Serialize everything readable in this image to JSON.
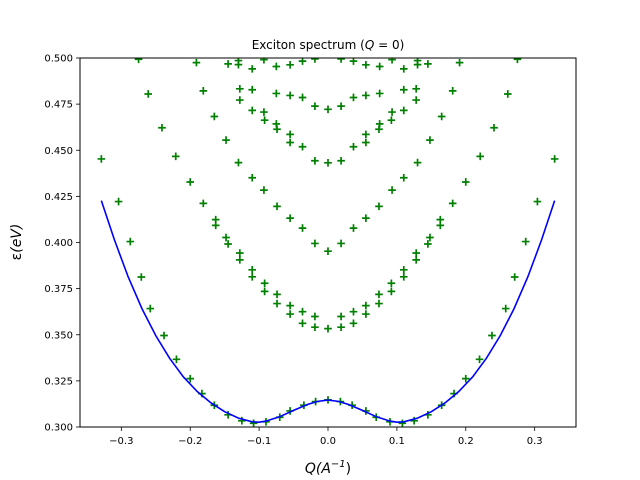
{
  "chart_data": {
    "type": "scatter",
    "title": "Exciton spectrum (Q = 0)",
    "title_parts": {
      "prefix": "Exciton spectrum (",
      "var": "Q",
      "suffix": " = 0)"
    },
    "xlabel": "Q(A^-1)",
    "xlabel_parts": {
      "base": "Q(A",
      "sup": "−1",
      "end": ")"
    },
    "ylabel": "ε(eV)",
    "ylabel_parts": {
      "symbol": "ε",
      "rest": "(eV)"
    },
    "xlim": [
      -0.36,
      0.36
    ],
    "ylim": [
      0.3,
      0.5
    ],
    "xticks": [
      -0.3,
      -0.2,
      -0.1,
      0.0,
      0.1,
      0.2,
      0.3
    ],
    "xtick_labels": [
      "−0.3",
      "−0.2",
      "−0.1",
      "0.0",
      "0.1",
      "0.2",
      "0.3"
    ],
    "yticks": [
      0.3,
      0.325,
      0.35,
      0.375,
      0.4,
      0.425,
      0.45,
      0.475,
      0.5
    ],
    "ytick_labels": [
      "0.300",
      "0.325",
      "0.350",
      "0.375",
      "0.400",
      "0.425",
      "0.450",
      "0.475",
      "0.500"
    ],
    "grid": false,
    "legend": "none",
    "series": [
      {
        "marker": "plus",
        "color": "#008000",
        "values": [
          [
            -0.329,
            0.4453
          ],
          [
            0.329,
            0.4453
          ],
          [
            -0.304,
            0.4222
          ],
          [
            0.304,
            0.4222
          ],
          [
            -0.287,
            0.4005
          ],
          [
            0.287,
            0.4005
          ],
          [
            -0.271,
            0.3813
          ],
          [
            0.271,
            0.3813
          ],
          [
            -0.258,
            0.3642
          ],
          [
            0.258,
            0.3642
          ],
          [
            -0.238,
            0.3496
          ],
          [
            0.238,
            0.3496
          ],
          [
            -0.22,
            0.3367
          ],
          [
            0.22,
            0.3367
          ],
          [
            -0.2,
            0.3262
          ],
          [
            0.2,
            0.3262
          ],
          [
            -0.183,
            0.3181
          ],
          [
            0.183,
            0.3181
          ],
          [
            -0.165,
            0.3118
          ],
          [
            0.165,
            0.3118
          ],
          [
            -0.145,
            0.3066
          ],
          [
            0.145,
            0.3066
          ],
          [
            -0.125,
            0.3034
          ],
          [
            0.125,
            0.3034
          ],
          [
            -0.108,
            0.302
          ],
          [
            0.108,
            0.302
          ],
          [
            -0.09,
            0.3028
          ],
          [
            0.09,
            0.3028
          ],
          [
            -0.07,
            0.3053
          ],
          [
            0.07,
            0.3053
          ],
          [
            -0.055,
            0.3087
          ],
          [
            0.055,
            0.3087
          ],
          [
            -0.035,
            0.3118
          ],
          [
            0.035,
            0.3118
          ],
          [
            -0.018,
            0.3138
          ],
          [
            0.018,
            0.3138
          ],
          [
            0.0,
            0.3147
          ],
          [
            -0.275,
            0.4993
          ],
          [
            0.275,
            0.4993
          ],
          [
            -0.261,
            0.4805
          ],
          [
            0.261,
            0.4805
          ],
          [
            -0.241,
            0.4622
          ],
          [
            0.241,
            0.4622
          ],
          [
            -0.221,
            0.4467
          ],
          [
            0.221,
            0.4467
          ],
          [
            -0.2,
            0.4328
          ],
          [
            0.2,
            0.4328
          ],
          [
            -0.181,
            0.4212
          ],
          [
            0.181,
            0.4212
          ],
          [
            -0.163,
            0.4093
          ],
          [
            0.163,
            0.4093
          ],
          [
            -0.145,
            0.3992
          ],
          [
            0.145,
            0.3992
          ],
          [
            -0.128,
            0.3906
          ],
          [
            0.128,
            0.3906
          ],
          [
            -0.11,
            0.3814
          ],
          [
            0.11,
            0.3814
          ],
          [
            -0.092,
            0.3735
          ],
          [
            0.092,
            0.3735
          ],
          [
            -0.074,
            0.3669
          ],
          [
            0.074,
            0.3669
          ],
          [
            -0.055,
            0.3612
          ],
          [
            0.055,
            0.3612
          ],
          [
            -0.037,
            0.3562
          ],
          [
            0.037,
            0.3562
          ],
          [
            -0.019,
            0.3541
          ],
          [
            0.019,
            0.3541
          ],
          [
            0.0,
            0.3533
          ],
          [
            -0.163,
            0.4124
          ],
          [
            0.163,
            0.4124
          ],
          [
            -0.148,
            0.4027
          ],
          [
            0.148,
            0.4027
          ],
          [
            -0.128,
            0.3943
          ],
          [
            0.128,
            0.3943
          ],
          [
            -0.11,
            0.3852
          ],
          [
            0.11,
            0.3852
          ],
          [
            -0.092,
            0.3779
          ],
          [
            0.092,
            0.3779
          ],
          [
            -0.074,
            0.3719
          ],
          [
            0.074,
            0.3719
          ],
          [
            -0.055,
            0.3658
          ],
          [
            0.055,
            0.3658
          ],
          [
            -0.037,
            0.3625
          ],
          [
            0.037,
            0.3625
          ],
          [
            -0.019,
            0.3599
          ],
          [
            0.019,
            0.3599
          ],
          [
            -0.191,
            0.4975
          ],
          [
            0.191,
            0.4975
          ],
          [
            -0.181,
            0.4822
          ],
          [
            0.181,
            0.4822
          ],
          [
            -0.165,
            0.4683
          ],
          [
            0.165,
            0.4683
          ],
          [
            -0.148,
            0.4555
          ],
          [
            0.148,
            0.4555
          ],
          [
            -0.13,
            0.4433
          ],
          [
            0.13,
            0.4433
          ],
          [
            -0.11,
            0.4351
          ],
          [
            0.11,
            0.4351
          ],
          [
            -0.093,
            0.4284
          ],
          [
            0.093,
            0.4284
          ],
          [
            -0.074,
            0.4196
          ],
          [
            0.074,
            0.4196
          ],
          [
            -0.055,
            0.4132
          ],
          [
            0.055,
            0.4132
          ],
          [
            -0.037,
            0.4078
          ],
          [
            0.037,
            0.4078
          ],
          [
            -0.019,
            0.3995
          ],
          [
            0.019,
            0.3995
          ],
          [
            0.0,
            0.3953
          ],
          [
            -0.13,
            0.4964
          ],
          [
            0.13,
            0.4964
          ],
          [
            -0.11,
            0.4828
          ],
          [
            0.11,
            0.4828
          ],
          [
            -0.093,
            0.4707
          ],
          [
            0.093,
            0.4707
          ],
          [
            -0.075,
            0.4643
          ],
          [
            0.075,
            0.4643
          ],
          [
            -0.055,
            0.4586
          ],
          [
            0.055,
            0.4586
          ],
          [
            -0.037,
            0.4519
          ],
          [
            0.037,
            0.4519
          ],
          [
            -0.019,
            0.4443
          ],
          [
            0.019,
            0.4443
          ],
          [
            0.0,
            0.4432
          ],
          [
            -0.128,
            0.4772
          ],
          [
            0.128,
            0.4772
          ],
          [
            -0.11,
            0.4716
          ],
          [
            0.11,
            0.4716
          ],
          [
            -0.092,
            0.4663
          ],
          [
            0.092,
            0.4663
          ],
          [
            -0.074,
            0.4614
          ],
          [
            0.074,
            0.4614
          ],
          [
            -0.055,
            0.4542
          ],
          [
            0.055,
            0.4542
          ],
          [
            -0.128,
            0.4833
          ],
          [
            0.128,
            0.4833
          ],
          [
            -0.093,
            0.4991
          ],
          [
            0.093,
            0.4991
          ],
          [
            -0.075,
            0.4808
          ],
          [
            0.075,
            0.4808
          ],
          [
            -0.055,
            0.4797
          ],
          [
            0.055,
            0.4797
          ],
          [
            -0.037,
            0.4786
          ],
          [
            0.037,
            0.4786
          ],
          [
            -0.019,
            0.4739
          ],
          [
            0.019,
            0.4739
          ],
          [
            0.0,
            0.4722
          ],
          [
            -0.11,
            0.4941
          ],
          [
            0.11,
            0.4941
          ],
          [
            -0.075,
            0.4954
          ],
          [
            0.075,
            0.4954
          ],
          [
            -0.055,
            0.4963
          ],
          [
            0.055,
            0.4963
          ],
          [
            -0.037,
            0.4983
          ],
          [
            0.037,
            0.4983
          ],
          [
            -0.019,
            0.4995
          ],
          [
            0.019,
            0.4995
          ],
          [
            -0.145,
            0.4968
          ],
          [
            0.145,
            0.4968
          ],
          [
            -0.13,
            0.4986
          ],
          [
            0.13,
            0.4986
          ]
        ]
      },
      {
        "marker": "line",
        "color": "#0000ff",
        "values": [
          [
            -0.329,
            0.4227
          ],
          [
            -0.31,
            0.4014
          ],
          [
            -0.29,
            0.3813
          ],
          [
            -0.27,
            0.3641
          ],
          [
            -0.25,
            0.3495
          ],
          [
            -0.23,
            0.3373
          ],
          [
            -0.21,
            0.3272
          ],
          [
            -0.19,
            0.3193
          ],
          [
            -0.17,
            0.3131
          ],
          [
            -0.15,
            0.3083
          ],
          [
            -0.13,
            0.3048
          ],
          [
            -0.11,
            0.3028
          ],
          [
            -0.1,
            0.3026
          ],
          [
            -0.09,
            0.3032
          ],
          [
            -0.07,
            0.3056
          ],
          [
            -0.05,
            0.309
          ],
          [
            -0.03,
            0.3122
          ],
          [
            -0.015,
            0.3139
          ],
          [
            0.0,
            0.3146
          ],
          [
            0.015,
            0.3139
          ],
          [
            0.03,
            0.3122
          ],
          [
            0.05,
            0.309
          ],
          [
            0.07,
            0.3056
          ],
          [
            0.09,
            0.3032
          ],
          [
            0.1,
            0.3026
          ],
          [
            0.11,
            0.3028
          ],
          [
            0.13,
            0.3048
          ],
          [
            0.15,
            0.3083
          ],
          [
            0.17,
            0.3131
          ],
          [
            0.19,
            0.3193
          ],
          [
            0.21,
            0.3272
          ],
          [
            0.23,
            0.3373
          ],
          [
            0.25,
            0.3495
          ],
          [
            0.27,
            0.3641
          ],
          [
            0.29,
            0.3813
          ],
          [
            0.31,
            0.4014
          ],
          [
            0.329,
            0.4227
          ]
        ]
      }
    ]
  }
}
